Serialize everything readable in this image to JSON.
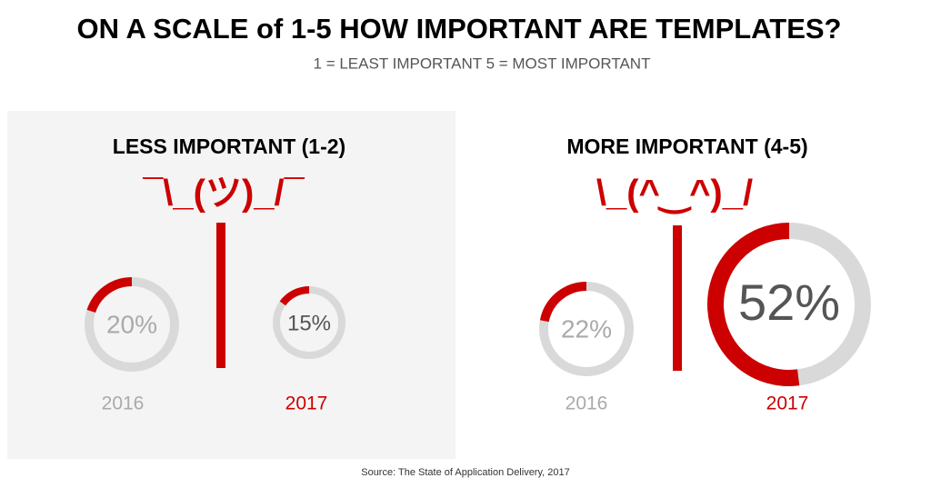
{
  "header": {
    "title": "ON A SCALE of 1-5 HOW IMPORTANT ARE TEMPLATES?",
    "subtitle": "1 = LEAST IMPORTANT  5 = MOST IMPORTANT"
  },
  "panels": [
    {
      "title": "LESS IMPORTANT (1-2)",
      "emoticon": "¯\\_(ツ)_/¯",
      "charts": [
        {
          "year": "2016",
          "value": 20,
          "value_label": "20%"
        },
        {
          "year": "2017",
          "value": 15,
          "value_label": "15%"
        }
      ]
    },
    {
      "title": "MORE IMPORTANT (4-5)",
      "emoticon": "\\_(^‿^)_/",
      "charts": [
        {
          "year": "2016",
          "value": 22,
          "value_label": "22%"
        },
        {
          "year": "2017",
          "value": 52,
          "value_label": "52%"
        }
      ]
    }
  ],
  "source": "Source: The State of Application Delivery, 2017"
}
